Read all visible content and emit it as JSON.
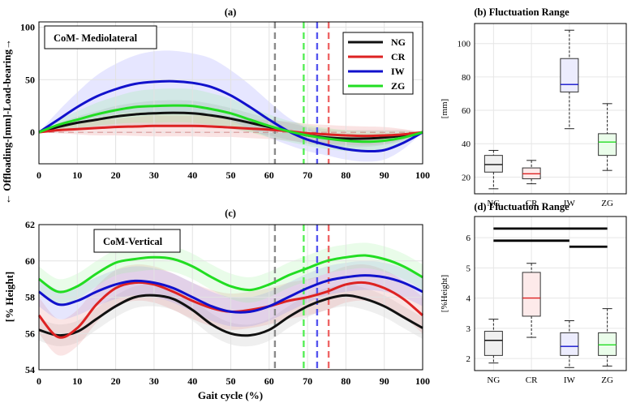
{
  "chart_data": [
    {
      "id": "a",
      "type": "line",
      "panel_label": "(a)",
      "annotation": "CoM- Mediolateral",
      "ylabel": "← Offloading-[mm]-Load-bearing→",
      "xlabel": "",
      "xlim": [
        0,
        100
      ],
      "ylim": [
        -30,
        105
      ],
      "xticks": [
        0,
        10,
        20,
        30,
        40,
        50,
        60,
        70,
        80,
        90,
        100
      ],
      "xtick_labels": [
        "0",
        "10",
        "20",
        "30",
        "40",
        "50",
        "60",
        "70",
        "80",
        "90",
        "100"
      ],
      "yticks": [
        0,
        50,
        100
      ],
      "ytick_labels": [
        "0",
        "50",
        "100"
      ],
      "grid": true,
      "legend": {
        "position": "top-right",
        "entries": [
          "NG",
          "CR",
          "IW",
          "ZG"
        ]
      },
      "x": [
        0,
        5,
        10,
        15,
        20,
        25,
        30,
        35,
        40,
        45,
        50,
        55,
        60,
        65,
        70,
        75,
        80,
        85,
        90,
        95,
        100
      ],
      "series": [
        {
          "name": "NG",
          "color": "#111111",
          "band_color": "#9a9a9a",
          "values": [
            0,
            5,
            9,
            12,
            15,
            17,
            18,
            18.5,
            18,
            16,
            13,
            9,
            5,
            1,
            -3,
            -5,
            -6,
            -6,
            -5,
            -3,
            0
          ],
          "band": [
            0,
            3,
            6,
            8,
            10,
            11,
            12,
            12,
            12,
            11,
            10,
            9,
            8,
            8,
            8,
            8,
            8,
            8,
            7,
            5,
            0
          ]
        },
        {
          "name": "CR",
          "color": "#dd2222",
          "band_color": "#e88080",
          "values": [
            0,
            2,
            3,
            4,
            5,
            5.5,
            6,
            6,
            6,
            5.5,
            4.5,
            3.5,
            2.5,
            1,
            -1,
            -2,
            -3,
            -3.5,
            -3,
            -2,
            0
          ],
          "band": [
            0,
            3,
            5,
            7,
            8,
            9,
            10,
            10,
            10,
            10,
            9,
            9,
            9,
            9,
            9,
            9,
            9,
            9,
            8,
            5,
            0
          ]
        },
        {
          "name": "IW",
          "color": "#1111cc",
          "band_color": "#8c8cff",
          "values": [
            0,
            12,
            24,
            34,
            41,
            46,
            48,
            48.5,
            47,
            43,
            35,
            24,
            12,
            1,
            -7,
            -12,
            -16,
            -18,
            -17,
            -10,
            0
          ],
          "band": [
            0,
            8,
            14,
            20,
            24,
            27,
            29,
            29,
            28,
            27,
            24,
            21,
            17,
            13,
            11,
            10,
            10,
            10,
            9,
            6,
            0
          ]
        },
        {
          "name": "ZG",
          "color": "#22dd22",
          "band_color": "#8cf08c",
          "values": [
            0,
            7,
            12,
            17,
            21,
            24,
            25,
            25.5,
            25,
            22,
            18,
            12,
            6,
            1,
            -3,
            -6,
            -8,
            -9,
            -8,
            -5,
            0
          ],
          "band": [
            0,
            5,
            8,
            11,
            13,
            15,
            16,
            16,
            16,
            15,
            14,
            12,
            11,
            10,
            10,
            10,
            10,
            10,
            9,
            6,
            0
          ]
        }
      ],
      "vlines": [
        {
          "x": 61.5,
          "color": "#8a8a8a"
        },
        {
          "x": 69,
          "color": "#55ee55"
        },
        {
          "x": 72.5,
          "color": "#5555ee"
        },
        {
          "x": 75.5,
          "color": "#ee6666"
        }
      ]
    },
    {
      "id": "b",
      "type": "box",
      "title": "(b) Fluctuation Range",
      "ylabel": "[mm]",
      "ylim": [
        10,
        112
      ],
      "yticks": [
        20,
        40,
        60,
        80,
        100
      ],
      "ytick_labels": [
        "20",
        "40",
        "60",
        "80",
        "100"
      ],
      "categories": [
        "NG",
        "CR",
        "IW",
        "ZG"
      ],
      "colors": [
        "#111111",
        "#dd2222",
        "#1111cc",
        "#22dd22"
      ],
      "fills": [
        "#f0f0f0",
        "#fdeaea",
        "#ececfd",
        "#eafdea"
      ],
      "boxes": [
        {
          "min": 13,
          "q1": 23,
          "median": 27.5,
          "q3": 33,
          "max": 36
        },
        {
          "min": 16,
          "q1": 19,
          "median": 22,
          "q3": 25.5,
          "max": 30
        },
        {
          "min": 49,
          "q1": 71,
          "median": 75.5,
          "q3": 91,
          "max": 108
        },
        {
          "min": 24,
          "q1": 33,
          "median": 41,
          "q3": 46,
          "max": 64
        }
      ]
    },
    {
      "id": "c",
      "type": "line",
      "panel_label": "(c)",
      "annotation": "CoM-Vertical",
      "ylabel": "[% Height]",
      "xlabel": "Gait cycle (%)",
      "xlim": [
        0,
        100
      ],
      "ylim": [
        54,
        62
      ],
      "xticks": [
        0,
        10,
        20,
        30,
        40,
        50,
        60,
        70,
        80,
        90,
        100
      ],
      "xtick_labels": [
        "0",
        "10",
        "20",
        "30",
        "40",
        "50",
        "60",
        "70",
        "80",
        "90",
        "100"
      ],
      "yticks": [
        54,
        56,
        58,
        60,
        62
      ],
      "ytick_labels": [
        "54",
        "56",
        "58",
        "60",
        "62"
      ],
      "grid": true,
      "x": [
        0,
        5,
        10,
        15,
        20,
        25,
        30,
        35,
        40,
        45,
        50,
        55,
        60,
        65,
        70,
        75,
        80,
        85,
        90,
        95,
        100
      ],
      "series": [
        {
          "name": "NG",
          "color": "#111111",
          "band_color": "#b5b5b5",
          "values": [
            56.2,
            55.9,
            56.1,
            56.8,
            57.5,
            58.0,
            58.1,
            57.9,
            57.3,
            56.5,
            56.0,
            55.9,
            56.2,
            56.9,
            57.5,
            57.9,
            58.1,
            57.9,
            57.5,
            56.9,
            56.3
          ],
          "band": [
            0.6,
            0.6,
            0.6,
            0.6,
            0.6,
            0.6,
            0.6,
            0.6,
            0.6,
            0.6,
            0.6,
            0.6,
            0.6,
            0.6,
            0.6,
            0.6,
            0.6,
            0.6,
            0.6,
            0.6,
            0.6
          ]
        },
        {
          "name": "CR",
          "color": "#dd2222",
          "band_color": "#e88888",
          "values": [
            57.0,
            55.8,
            56.3,
            57.6,
            58.5,
            58.8,
            58.7,
            58.3,
            57.8,
            57.4,
            57.2,
            57.3,
            57.5,
            57.8,
            58.0,
            58.3,
            58.7,
            58.8,
            58.5,
            57.9,
            57.0
          ],
          "band": [
            1.0,
            1.0,
            1.0,
            1.0,
            1.0,
            1.0,
            1.0,
            1.0,
            1.0,
            1.0,
            1.0,
            1.0,
            1.0,
            1.0,
            1.0,
            1.0,
            1.0,
            1.0,
            1.0,
            1.0,
            1.0
          ]
        },
        {
          "name": "IW",
          "color": "#1111cc",
          "band_color": "#8c8cf8",
          "values": [
            58.3,
            57.6,
            57.8,
            58.3,
            58.7,
            58.9,
            58.8,
            58.5,
            58.0,
            57.5,
            57.2,
            57.2,
            57.5,
            58.0,
            58.5,
            58.9,
            59.1,
            59.2,
            59.1,
            58.8,
            58.3
          ],
          "band": [
            0.8,
            0.8,
            0.8,
            0.8,
            0.8,
            0.8,
            0.8,
            0.8,
            0.8,
            0.8,
            0.8,
            0.8,
            0.8,
            0.8,
            0.8,
            0.8,
            0.8,
            0.8,
            0.8,
            0.8,
            0.8
          ]
        },
        {
          "name": "ZG",
          "color": "#22dd22",
          "band_color": "#9cf09c",
          "values": [
            59.0,
            58.3,
            58.6,
            59.3,
            59.9,
            60.1,
            60.2,
            60.1,
            59.7,
            59.1,
            58.6,
            58.4,
            58.7,
            59.2,
            59.6,
            60.0,
            60.2,
            60.3,
            60.1,
            59.7,
            59.1
          ],
          "band": [
            0.7,
            0.7,
            0.7,
            0.7,
            0.7,
            0.7,
            0.7,
            0.7,
            0.7,
            0.7,
            0.7,
            0.7,
            0.7,
            0.7,
            0.7,
            0.7,
            0.7,
            0.7,
            0.7,
            0.7,
            0.7
          ]
        }
      ],
      "vlines": [
        {
          "x": 61.5,
          "color": "#8a8a8a"
        },
        {
          "x": 69,
          "color": "#55ee55"
        },
        {
          "x": 72.5,
          "color": "#5555ee"
        },
        {
          "x": 75.5,
          "color": "#ee6666"
        }
      ]
    },
    {
      "id": "d",
      "type": "box",
      "title": "(d) Fluctuation Range",
      "ylabel": "[%Height]",
      "ylim": [
        1.6,
        6.7
      ],
      "yticks": [
        2,
        3,
        4,
        5,
        6
      ],
      "ytick_labels": [
        "2",
        "3",
        "4",
        "5",
        "6"
      ],
      "categories": [
        "NG",
        "CR",
        "IW",
        "ZG"
      ],
      "colors": [
        "#111111",
        "#dd2222",
        "#1111cc",
        "#22dd22"
      ],
      "fills": [
        "#f0f0f0",
        "#fdeaea",
        "#ececfd",
        "#eafdea"
      ],
      "boxes": [
        {
          "min": 1.85,
          "q1": 2.1,
          "median": 2.6,
          "q3": 2.9,
          "max": 3.3
        },
        {
          "min": 2.7,
          "q1": 3.4,
          "median": 4.0,
          "q3": 4.85,
          "max": 5.15
        },
        {
          "min": 1.7,
          "q1": 2.1,
          "median": 2.4,
          "q3": 2.85,
          "max": 3.25
        },
        {
          "min": 1.75,
          "q1": 2.1,
          "median": 2.45,
          "q3": 2.85,
          "max": 3.65
        }
      ],
      "significance": [
        {
          "from": 0,
          "to": 3,
          "y": 6.3
        },
        {
          "from": 0,
          "to": 2,
          "y": 5.9
        },
        {
          "from": 2,
          "to": 3,
          "y": 5.7
        }
      ]
    }
  ]
}
